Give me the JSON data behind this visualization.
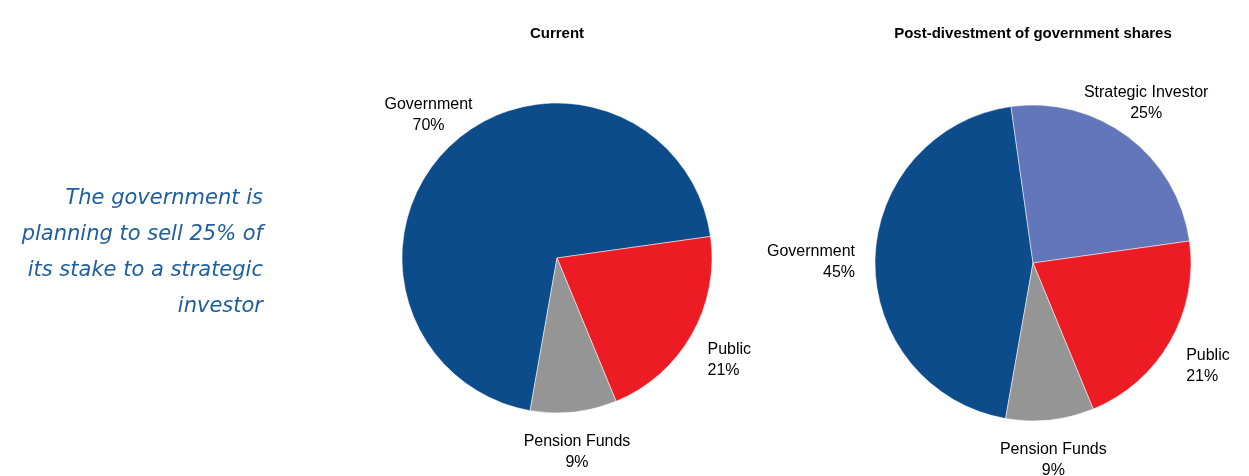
{
  "chart_data": [
    {
      "type": "other",
      "annotations": [
        "The government is planning to sell 25% of its stake to a strategic investor"
      ]
    },
    {
      "type": "pie",
      "title": "Current",
      "categories": [
        "Government",
        "Public",
        "Pension Funds"
      ],
      "values": [
        70,
        21,
        9
      ],
      "colors": [
        "#0c4c8a",
        "#ed1c24",
        "#959595"
      ],
      "value_labels": [
        "70%",
        "21%",
        "9%"
      ]
    },
    {
      "type": "pie",
      "title": "Post-divestment of government shares",
      "categories": [
        "Government",
        "Strategic Investor",
        "Public",
        "Pension Funds"
      ],
      "values": [
        45,
        25,
        21,
        9
      ],
      "colors": [
        "#0c4c8a",
        "#6276b9",
        "#ed1c24",
        "#959595"
      ],
      "value_labels": [
        "45%",
        "25%",
        "21%",
        "9%"
      ]
    }
  ]
}
